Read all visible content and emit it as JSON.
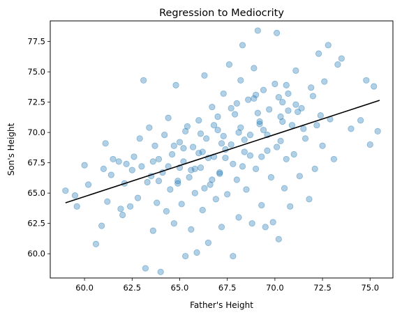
{
  "chart_data": {
    "type": "scatter",
    "title": "Regression to Mediocrity",
    "xlabel": "Father's Height",
    "ylabel": "Son's Height",
    "xlim": [
      58.2,
      76.2
    ],
    "ylim": [
      58.0,
      79.2
    ],
    "xticks": [
      60.0,
      62.5,
      65.0,
      67.5,
      70.0,
      72.5,
      75.0
    ],
    "xtick_labels": [
      "60.0",
      "62.5",
      "65.0",
      "67.5",
      "70.0",
      "72.5",
      "75.0"
    ],
    "yticks": [
      60.0,
      62.5,
      65.0,
      67.5,
      70.0,
      72.5,
      75.0,
      77.5
    ],
    "ytick_labels": [
      "60.0",
      "62.5",
      "65.0",
      "67.5",
      "70.0",
      "72.5",
      "75.0",
      "77.5"
    ],
    "grid": false,
    "legend": "none",
    "colors": {
      "points": "#1f77b4",
      "line": "#000000"
    },
    "series": [
      {
        "kind": "scatter",
        "alpha": 0.35,
        "points": [
          [
            59.0,
            65.2
          ],
          [
            59.5,
            64.8
          ],
          [
            59.6,
            63.9
          ],
          [
            60.0,
            67.3
          ],
          [
            60.2,
            65.7
          ],
          [
            60.6,
            60.8
          ],
          [
            60.9,
            62.3
          ],
          [
            61.0,
            67.0
          ],
          [
            61.1,
            69.1
          ],
          [
            61.2,
            64.3
          ],
          [
            61.4,
            66.5
          ],
          [
            61.5,
            67.8
          ],
          [
            61.8,
            67.6
          ],
          [
            61.9,
            63.7
          ],
          [
            62.0,
            63.2
          ],
          [
            62.1,
            65.8
          ],
          [
            62.2,
            67.4
          ],
          [
            62.4,
            63.9
          ],
          [
            62.5,
            66.9
          ],
          [
            62.6,
            68.0
          ],
          [
            62.8,
            64.6
          ],
          [
            62.9,
            69.5
          ],
          [
            63.0,
            67.2
          ],
          [
            63.1,
            74.3
          ],
          [
            63.2,
            58.8
          ],
          [
            63.3,
            65.9
          ],
          [
            63.4,
            70.4
          ],
          [
            63.5,
            66.4
          ],
          [
            63.6,
            61.9
          ],
          [
            63.7,
            68.9
          ],
          [
            63.8,
            64.2
          ],
          [
            63.9,
            67.8
          ],
          [
            64.0,
            58.5
          ],
          [
            64.1,
            66.7
          ],
          [
            64.2,
            69.8
          ],
          [
            64.3,
            63.5
          ],
          [
            64.4,
            71.2
          ],
          [
            64.5,
            65.3
          ],
          [
            64.6,
            68.2
          ],
          [
            64.7,
            62.5
          ],
          [
            64.8,
            73.9
          ],
          [
            64.9,
            66.0
          ],
          [
            65.0,
            69.2
          ],
          [
            65.1,
            64.1
          ],
          [
            65.2,
            67.6
          ],
          [
            65.3,
            59.8
          ],
          [
            65.4,
            70.5
          ],
          [
            65.5,
            66.3
          ],
          [
            65.6,
            62.0
          ],
          [
            65.7,
            68.8
          ],
          [
            65.8,
            65.0
          ],
          [
            65.9,
            60.1
          ],
          [
            66.0,
            71.0
          ],
          [
            66.1,
            67.1
          ],
          [
            66.2,
            63.6
          ],
          [
            66.3,
            74.7
          ],
          [
            66.4,
            69.5
          ],
          [
            66.5,
            60.9
          ],
          [
            66.6,
            65.7
          ],
          [
            66.7,
            72.1
          ],
          [
            66.8,
            68.0
          ],
          [
            66.9,
            64.5
          ],
          [
            67.0,
            70.2
          ],
          [
            67.1,
            66.6
          ],
          [
            67.2,
            62.2
          ],
          [
            67.3,
            73.2
          ],
          [
            67.4,
            67.9
          ],
          [
            67.5,
            64.9
          ],
          [
            67.6,
            75.6
          ],
          [
            67.7,
            69.0
          ],
          [
            67.8,
            59.8
          ],
          [
            67.9,
            71.5
          ],
          [
            68.0,
            66.1
          ],
          [
            68.1,
            63.0
          ],
          [
            68.2,
            74.3
          ],
          [
            68.3,
            77.2
          ],
          [
            68.4,
            68.4
          ],
          [
            68.5,
            65.3
          ],
          [
            68.6,
            72.7
          ],
          [
            68.7,
            69.8
          ],
          [
            68.8,
            62.5
          ],
          [
            68.9,
            75.3
          ],
          [
            69.0,
            67.0
          ],
          [
            69.1,
            78.4
          ],
          [
            69.2,
            70.7
          ],
          [
            69.3,
            64.0
          ],
          [
            69.4,
            73.5
          ],
          [
            69.5,
            62.2
          ],
          [
            69.6,
            68.5
          ],
          [
            69.7,
            71.9
          ],
          [
            69.8,
            66.3
          ],
          [
            69.9,
            62.6
          ],
          [
            70.0,
            74.0
          ],
          [
            70.1,
            78.2
          ],
          [
            70.2,
            61.2
          ],
          [
            70.3,
            69.3
          ],
          [
            70.4,
            72.5
          ],
          [
            70.5,
            65.4
          ],
          [
            70.6,
            67.8
          ],
          [
            70.7,
            73.2
          ],
          [
            70.8,
            63.9
          ],
          [
            70.9,
            70.6
          ],
          [
            71.0,
            68.2
          ],
          [
            71.1,
            75.1
          ],
          [
            71.3,
            66.4
          ],
          [
            71.4,
            72.0
          ],
          [
            71.6,
            69.5
          ],
          [
            71.8,
            64.5
          ],
          [
            71.9,
            73.7
          ],
          [
            72.1,
            67.0
          ],
          [
            72.2,
            70.6
          ],
          [
            72.3,
            76.5
          ],
          [
            72.5,
            68.9
          ],
          [
            72.6,
            74.2
          ],
          [
            72.8,
            77.2
          ],
          [
            72.9,
            71.1
          ],
          [
            73.1,
            67.8
          ],
          [
            73.3,
            75.6
          ],
          [
            73.5,
            76.1
          ],
          [
            74.0,
            70.3
          ],
          [
            74.5,
            71.0
          ],
          [
            74.8,
            74.3
          ],
          [
            75.0,
            69.0
          ],
          [
            75.2,
            73.8
          ],
          [
            75.4,
            70.1
          ],
          [
            66.2,
            68.4
          ],
          [
            67.3,
            69.7
          ],
          [
            68.2,
            70.4
          ],
          [
            69.1,
            71.6
          ],
          [
            70.2,
            72.9
          ],
          [
            65.8,
            67.0
          ],
          [
            66.7,
            66.1
          ],
          [
            67.8,
            67.4
          ],
          [
            68.7,
            68.1
          ],
          [
            69.6,
            69.8
          ],
          [
            70.4,
            70.9
          ],
          [
            71.2,
            71.7
          ],
          [
            64.4,
            67.2
          ],
          [
            65.2,
            68.7
          ],
          [
            66.1,
            69.9
          ],
          [
            67.0,
            71.3
          ],
          [
            68.0,
            72.4
          ],
          [
            69.0,
            73.1
          ],
          [
            64.9,
            65.8
          ],
          [
            65.6,
            66.9
          ],
          [
            66.5,
            67.9
          ],
          [
            67.4,
            68.6
          ],
          [
            68.4,
            69.4
          ],
          [
            69.4,
            70.2
          ],
          [
            70.3,
            71.3
          ],
          [
            71.1,
            72.3
          ],
          [
            72.0,
            73.0
          ],
          [
            63.6,
            67.6
          ],
          [
            64.7,
            68.9
          ],
          [
            65.3,
            70.1
          ],
          [
            66.8,
            70.6
          ],
          [
            67.7,
            72.0
          ],
          [
            68.9,
            72.8
          ],
          [
            70.6,
            73.9
          ],
          [
            66.3,
            65.4
          ],
          [
            67.1,
            66.7
          ],
          [
            68.3,
            67.2
          ],
          [
            69.3,
            68.0
          ],
          [
            70.1,
            68.8
          ],
          [
            71.5,
            70.3
          ],
          [
            72.4,
            71.4
          ],
          [
            63.9,
            66.0
          ],
          [
            65.0,
            67.1
          ],
          [
            66.0,
            68.3
          ],
          [
            67.2,
            69.1
          ],
          [
            68.1,
            70.0
          ],
          [
            69.2,
            70.9
          ],
          [
            70.7,
            71.8
          ]
        ]
      },
      {
        "kind": "line",
        "points": [
          [
            59.0,
            64.2
          ],
          [
            75.5,
            72.65
          ]
        ]
      }
    ]
  }
}
